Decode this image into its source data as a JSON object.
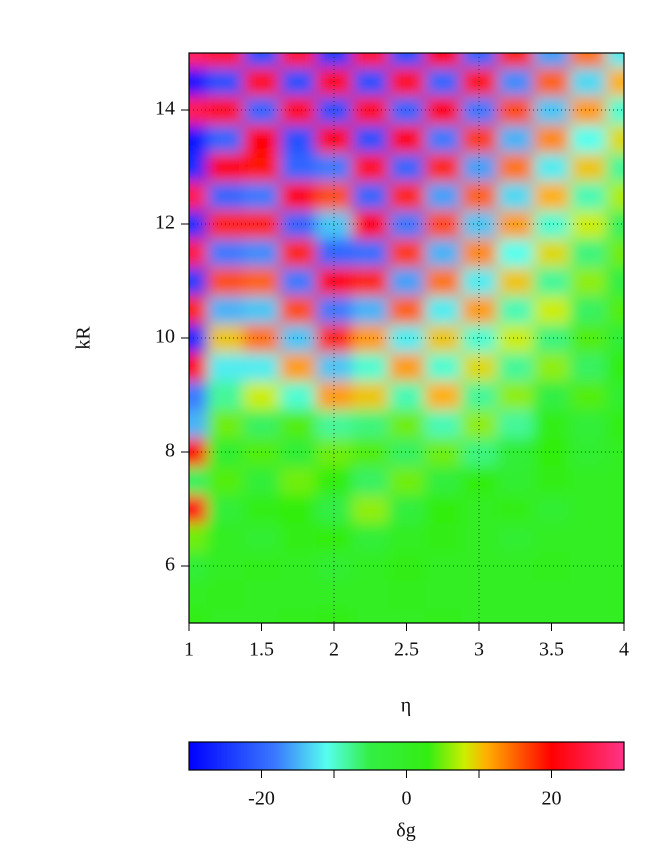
{
  "chart_data": {
    "type": "heatmap",
    "xlabel": "η",
    "ylabel": "kR",
    "colorbar_label": "δg",
    "x": [
      1,
      1.25,
      1.5,
      1.75,
      2,
      2.25,
      2.5,
      2.75,
      3,
      3.25,
      3.5,
      3.75,
      4
    ],
    "y": [
      5,
      5.5,
      6,
      6.5,
      7,
      7.5,
      8,
      8.5,
      9,
      9.5,
      10,
      10.5,
      11,
      11.5,
      12,
      12.5,
      13,
      13.5,
      14,
      14.5,
      15
    ],
    "z": [
      [
        2,
        0,
        0,
        1,
        2,
        0,
        0,
        1,
        0,
        0,
        0,
        0,
        0
      ],
      [
        0,
        1,
        0,
        0,
        0,
        0,
        1,
        0,
        0,
        0,
        0,
        0,
        0
      ],
      [
        -3,
        0,
        1,
        0,
        -2,
        0,
        2,
        0,
        0,
        0,
        1,
        0,
        0
      ],
      [
        5,
        0,
        -2,
        2,
        3,
        -3,
        0,
        2,
        0,
        -2,
        0,
        0,
        0
      ],
      [
        22,
        -3,
        2,
        3,
        -5,
        6,
        -4,
        3,
        0,
        2,
        -2,
        0,
        0
      ],
      [
        -6,
        4,
        -3,
        5,
        3,
        -6,
        5,
        -4,
        3,
        -2,
        2,
        0,
        0
      ],
      [
        20,
        -2,
        4,
        -3,
        5,
        4,
        -6,
        5,
        -7,
        -3,
        3,
        -2,
        0
      ],
      [
        -15,
        5,
        -6,
        4,
        -8,
        -7,
        5,
        -9,
        6,
        -8,
        2,
        -3,
        2
      ],
      [
        -18,
        -8,
        8,
        -10,
        12,
        10,
        -9,
        11,
        -8,
        6,
        -5,
        4,
        -2
      ],
      [
        22,
        -12,
        -12,
        12,
        -14,
        -10,
        12,
        -10,
        9,
        -8,
        6,
        -6,
        3
      ],
      [
        -26,
        10,
        14,
        -14,
        18,
        12,
        -12,
        10,
        -10,
        8,
        -7,
        4,
        -3
      ],
      [
        18,
        -15,
        -14,
        16,
        -18,
        -15,
        15,
        -12,
        12,
        -9,
        8,
        -6,
        4
      ],
      [
        -24,
        16,
        15,
        -18,
        20,
        18,
        -16,
        14,
        -12,
        10,
        -8,
        6,
        -5
      ],
      [
        25,
        -18,
        -17,
        18,
        -20,
        -19,
        17,
        -15,
        13,
        -11,
        9,
        -7,
        5
      ],
      [
        -25,
        18,
        18,
        -20,
        -14,
        20,
        -18,
        16,
        -14,
        12,
        -10,
        8,
        -6
      ],
      [
        26,
        -20,
        -18,
        20,
        16,
        -20,
        18,
        -16,
        15,
        -13,
        11,
        -9,
        7
      ],
      [
        -26,
        20,
        19,
        -20,
        -18,
        22,
        -20,
        18,
        -16,
        14,
        -12,
        10,
        -8
      ],
      [
        -28,
        -20,
        20,
        -22,
        20,
        -22,
        20,
        -18,
        17,
        -15,
        13,
        -11,
        9
      ],
      [
        26,
        22,
        -20,
        22,
        -22,
        22,
        -20,
        20,
        -18,
        16,
        -14,
        12,
        -10
      ],
      [
        -28,
        -22,
        22,
        -22,
        22,
        -22,
        22,
        -20,
        19,
        -17,
        15,
        -13,
        11
      ],
      [
        27,
        24,
        -22,
        24,
        -24,
        24,
        -22,
        21,
        -20,
        18,
        -16,
        14,
        -12
      ]
    ],
    "xlim": [
      1,
      4
    ],
    "ylim": [
      5,
      15
    ],
    "xticks": [
      1,
      1.5,
      2,
      2.5,
      3,
      3.5,
      4
    ],
    "yticks": [
      6,
      8,
      10,
      12,
      14
    ],
    "grid": true,
    "zlim": [
      -30,
      30
    ],
    "colorbar_ticks": [
      -20,
      0,
      20
    ],
    "colorbar_minor_ticks": [
      -10,
      10
    ],
    "colormap": [
      {
        "value": -30,
        "color": "#0000ff"
      },
      {
        "value": -18,
        "color": "#3a7aff"
      },
      {
        "value": -11,
        "color": "#55ffee"
      },
      {
        "value": -5,
        "color": "#33ee44"
      },
      {
        "value": 3,
        "color": "#33ee11"
      },
      {
        "value": 8,
        "color": "#ccee00"
      },
      {
        "value": 11,
        "color": "#ffb000"
      },
      {
        "value": 20,
        "color": "#ff0000"
      },
      {
        "value": 30,
        "color": "#ff3388"
      }
    ]
  }
}
